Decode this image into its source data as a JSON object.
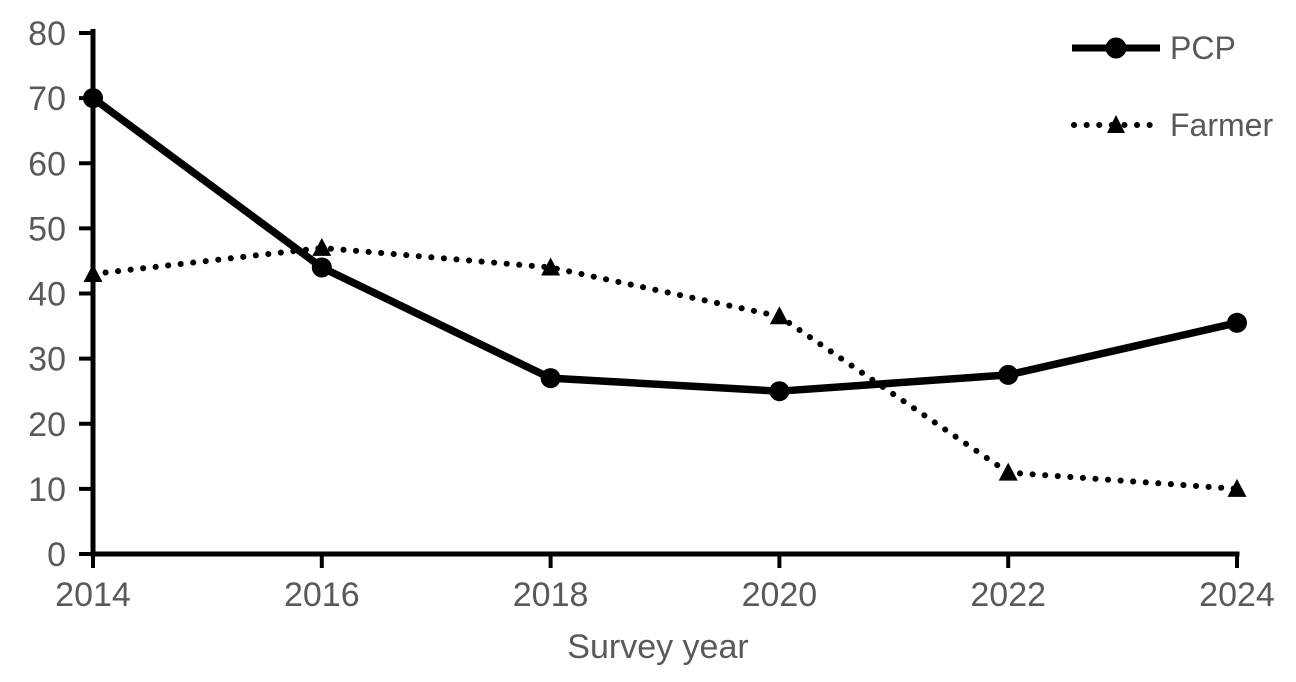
{
  "chart_data": {
    "type": "line",
    "title": "",
    "xlabel": "Survey year",
    "ylabel": "",
    "x": [
      2014,
      2016,
      2018,
      2020,
      2022,
      2024
    ],
    "xticks": [
      2014,
      2016,
      2018,
      2020,
      2022,
      2024
    ],
    "yticks": [
      0,
      10,
      20,
      30,
      40,
      50,
      60,
      70,
      80
    ],
    "xlim": [
      2014,
      2024
    ],
    "ylim": [
      0,
      80
    ],
    "grid": false,
    "legend_position": "top-right",
    "background_color": "#ffffff",
    "axis_color": "#000000",
    "text_color": "#595959",
    "series": [
      {
        "name": "PCP",
        "values": [
          70,
          44,
          27,
          25,
          27.5,
          35.5
        ],
        "color": "#000000",
        "line_style": "solid",
        "marker": "circle"
      },
      {
        "name": "Farmer",
        "values": [
          43,
          47,
          44,
          36.5,
          12.5,
          10
        ],
        "color": "#000000",
        "line_style": "dotted",
        "marker": "triangle"
      }
    ]
  }
}
